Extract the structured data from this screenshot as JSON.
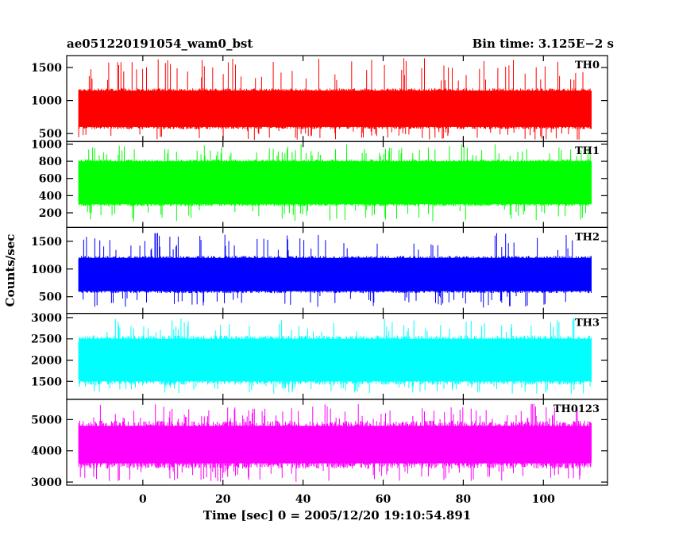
{
  "header": {
    "left_title": "ae051220191054_wam0_bst",
    "right_title": "Bin time: 3.125E−2 s"
  },
  "chart_data": {
    "type": "line",
    "title": "ae051220191054_wam0_bst",
    "bin_time": "Bin time: 3.125E−2 s",
    "xlabel": "Time [sec] 0 = 2005/12/20 19:10:54.891",
    "ylabel": "Counts/sec",
    "xlim": [
      -19,
      116
    ],
    "data_range": [
      -16,
      112
    ],
    "x_ticks": [
      0,
      20,
      40,
      60,
      80,
      100
    ],
    "x_tick_labels": [
      "0",
      "20",
      "40",
      "60",
      "80",
      "100"
    ],
    "grid": false,
    "panels": [
      {
        "name": "TH0",
        "color": "#ff0000",
        "ylim": [
          380,
          1680
        ],
        "y_ticks": [
          500,
          1000,
          1500
        ],
        "y_tick_labels": [
          "500",
          "1000",
          "1500"
        ],
        "typical_range": [
          600,
          1150
        ],
        "peak_range": [
          400,
          1650
        ]
      },
      {
        "name": "TH1",
        "color": "#00ff00",
        "ylim": [
          30,
          1030
        ],
        "y_ticks": [
          200,
          400,
          600,
          800,
          1000
        ],
        "y_tick_labels": [
          "200",
          "400",
          "600",
          "800",
          "1000"
        ],
        "typical_range": [
          300,
          800
        ],
        "peak_range": [
          100,
          1000
        ]
      },
      {
        "name": "TH2",
        "color": "#0000ff",
        "ylim": [
          200,
          1750
        ],
        "y_ticks": [
          500,
          1000,
          1500
        ],
        "y_tick_labels": [
          "500",
          "1000",
          "1500"
        ],
        "typical_range": [
          600,
          1200
        ],
        "peak_range": [
          300,
          1650
        ]
      },
      {
        "name": "TH3",
        "color": "#00ffff",
        "ylim": [
          1080,
          3100
        ],
        "y_ticks": [
          1500,
          2000,
          2500,
          3000
        ],
        "y_tick_labels": [
          "1500",
          "2000",
          "2500",
          "3000"
        ],
        "typical_range": [
          1500,
          2500
        ],
        "peak_range": [
          1200,
          3000
        ]
      },
      {
        "name": "TH0123",
        "color": "#ff00ff",
        "ylim": [
          2900,
          5650
        ],
        "y_ticks": [
          3000,
          4000,
          5000
        ],
        "y_tick_labels": [
          "3000",
          "4000",
          "5000"
        ],
        "typical_range": [
          3600,
          4800
        ],
        "peak_range": [
          3000,
          5500
        ]
      }
    ]
  }
}
